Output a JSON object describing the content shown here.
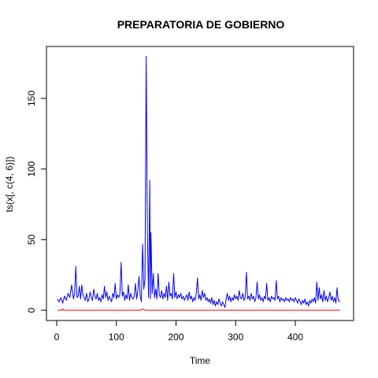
{
  "chart_data": {
    "type": "line",
    "title": "PREPARATORIA DE GOBIERNO",
    "xlabel": "Time",
    "ylabel": "ts(x[, c(4, 6)])",
    "xlim": [
      0,
      480
    ],
    "ylim": [
      0,
      180
    ],
    "x_ticks": [
      0,
      100,
      200,
      300,
      400
    ],
    "y_ticks": [
      0,
      50,
      100,
      150
    ],
    "grid": false,
    "legend": "none",
    "series": [
      {
        "color": "#0000ff",
        "points": [
          [
            1,
            8
          ],
          [
            4,
            6
          ],
          [
            7,
            9
          ],
          [
            10,
            5
          ],
          [
            13,
            10
          ],
          [
            16,
            7
          ],
          [
            19,
            12
          ],
          [
            22,
            9
          ],
          [
            25,
            18
          ],
          [
            28,
            8
          ],
          [
            30,
            12
          ],
          [
            32,
            31
          ],
          [
            34,
            9
          ],
          [
            36,
            10
          ],
          [
            38,
            17
          ],
          [
            40,
            8
          ],
          [
            42,
            18
          ],
          [
            44,
            11
          ],
          [
            46,
            9
          ],
          [
            48,
            7
          ],
          [
            50,
            12
          ],
          [
            52,
            6
          ],
          [
            54,
            8
          ],
          [
            56,
            13
          ],
          [
            58,
            9
          ],
          [
            60,
            7
          ],
          [
            62,
            15
          ],
          [
            64,
            10
          ],
          [
            66,
            8
          ],
          [
            68,
            12
          ],
          [
            70,
            7
          ],
          [
            72,
            9
          ],
          [
            74,
            6
          ],
          [
            76,
            11
          ],
          [
            78,
            8
          ],
          [
            80,
            17
          ],
          [
            82,
            9
          ],
          [
            84,
            13
          ],
          [
            86,
            7
          ],
          [
            88,
            10
          ],
          [
            90,
            8
          ],
          [
            92,
            6
          ],
          [
            94,
            12
          ],
          [
            96,
            9
          ],
          [
            98,
            19
          ],
          [
            100,
            8
          ],
          [
            102,
            11
          ],
          [
            104,
            9
          ],
          [
            106,
            12
          ],
          [
            108,
            34
          ],
          [
            110,
            10
          ],
          [
            112,
            13
          ],
          [
            114,
            7
          ],
          [
            116,
            11
          ],
          [
            118,
            8
          ],
          [
            120,
            18
          ],
          [
            122,
            7
          ],
          [
            124,
            12
          ],
          [
            126,
            9
          ],
          [
            128,
            8
          ],
          [
            130,
            10
          ],
          [
            132,
            19
          ],
          [
            134,
            8
          ],
          [
            136,
            14
          ],
          [
            138,
            24
          ],
          [
            140,
            10
          ],
          [
            142,
            6
          ],
          [
            144,
            47
          ],
          [
            146,
            15
          ],
          [
            148,
            22
          ],
          [
            150,
            180
          ],
          [
            152,
            56
          ],
          [
            154,
            9
          ],
          [
            156,
            92
          ],
          [
            157,
            8
          ],
          [
            158,
            55
          ],
          [
            160,
            12
          ],
          [
            162,
            26
          ],
          [
            164,
            9
          ],
          [
            166,
            15
          ],
          [
            168,
            8
          ],
          [
            170,
            26
          ],
          [
            172,
            11
          ],
          [
            174,
            9
          ],
          [
            176,
            14
          ],
          [
            178,
            8
          ],
          [
            180,
            12
          ],
          [
            182,
            9
          ],
          [
            184,
            17
          ],
          [
            186,
            7
          ],
          [
            188,
            20
          ],
          [
            190,
            10
          ],
          [
            192,
            12
          ],
          [
            194,
            8
          ],
          [
            196,
            26
          ],
          [
            198,
            9
          ],
          [
            200,
            13
          ],
          [
            202,
            8
          ],
          [
            204,
            11
          ],
          [
            206,
            9
          ],
          [
            208,
            12
          ],
          [
            210,
            8
          ],
          [
            212,
            10
          ],
          [
            214,
            7
          ],
          [
            216,
            9
          ],
          [
            218,
            11
          ],
          [
            220,
            7
          ],
          [
            222,
            13
          ],
          [
            224,
            8
          ],
          [
            226,
            10
          ],
          [
            228,
            6
          ],
          [
            230,
            9
          ],
          [
            232,
            7
          ],
          [
            234,
            12
          ],
          [
            236,
            23
          ],
          [
            238,
            8
          ],
          [
            240,
            11
          ],
          [
            242,
            7
          ],
          [
            244,
            14
          ],
          [
            246,
            9
          ],
          [
            248,
            12
          ],
          [
            250,
            7
          ],
          [
            252,
            9
          ],
          [
            254,
            6
          ],
          [
            256,
            8
          ],
          [
            258,
            5
          ],
          [
            260,
            9
          ],
          [
            262,
            4
          ],
          [
            264,
            7
          ],
          [
            266,
            3
          ],
          [
            268,
            6
          ],
          [
            270,
            4
          ],
          [
            272,
            8
          ],
          [
            274,
            5
          ],
          [
            276,
            3
          ],
          [
            278,
            6
          ],
          [
            280,
            4
          ],
          [
            282,
            2
          ],
          [
            284,
            8
          ],
          [
            286,
            12
          ],
          [
            288,
            7
          ],
          [
            290,
            10
          ],
          [
            292,
            6
          ],
          [
            294,
            9
          ],
          [
            296,
            7
          ],
          [
            298,
            11
          ],
          [
            300,
            8
          ],
          [
            302,
            10
          ],
          [
            304,
            7
          ],
          [
            306,
            14
          ],
          [
            308,
            9
          ],
          [
            310,
            8
          ],
          [
            312,
            12
          ],
          [
            314,
            7
          ],
          [
            316,
            9
          ],
          [
            318,
            27
          ],
          [
            320,
            8
          ],
          [
            322,
            10
          ],
          [
            324,
            7
          ],
          [
            326,
            12
          ],
          [
            328,
            8
          ],
          [
            330,
            10
          ],
          [
            332,
            6
          ],
          [
            334,
            9
          ],
          [
            336,
            20
          ],
          [
            338,
            8
          ],
          [
            340,
            11
          ],
          [
            342,
            7
          ],
          [
            344,
            9
          ],
          [
            346,
            6
          ],
          [
            348,
            10
          ],
          [
            350,
            8
          ],
          [
            352,
            19
          ],
          [
            354,
            7
          ],
          [
            356,
            9
          ],
          [
            358,
            6
          ],
          [
            360,
            10
          ],
          [
            362,
            8
          ],
          [
            364,
            9
          ],
          [
            366,
            7
          ],
          [
            368,
            21
          ],
          [
            370,
            8
          ],
          [
            372,
            10
          ],
          [
            374,
            6
          ],
          [
            376,
            9
          ],
          [
            378,
            7
          ],
          [
            380,
            8
          ],
          [
            382,
            6
          ],
          [
            384,
            9
          ],
          [
            386,
            7
          ],
          [
            388,
            8
          ],
          [
            390,
            6
          ],
          [
            392,
            9
          ],
          [
            394,
            7
          ],
          [
            396,
            8
          ],
          [
            398,
            6
          ],
          [
            400,
            9
          ],
          [
            402,
            7
          ],
          [
            404,
            5
          ],
          [
            406,
            8
          ],
          [
            408,
            6
          ],
          [
            410,
            4
          ],
          [
            412,
            7
          ],
          [
            414,
            5
          ],
          [
            416,
            8
          ],
          [
            418,
            4
          ],
          [
            420,
            6
          ],
          [
            422,
            3
          ],
          [
            424,
            7
          ],
          [
            426,
            5
          ],
          [
            428,
            8
          ],
          [
            430,
            6
          ],
          [
            432,
            9
          ],
          [
            434,
            5
          ],
          [
            436,
            20
          ],
          [
            438,
            7
          ],
          [
            440,
            16
          ],
          [
            442,
            8
          ],
          [
            444,
            11
          ],
          [
            446,
            6
          ],
          [
            448,
            14
          ],
          [
            450,
            7
          ],
          [
            452,
            10
          ],
          [
            454,
            6
          ],
          [
            456,
            9
          ],
          [
            458,
            13
          ],
          [
            460,
            7
          ],
          [
            462,
            10
          ],
          [
            464,
            6
          ],
          [
            466,
            9
          ],
          [
            468,
            5
          ],
          [
            470,
            16
          ],
          [
            472,
            7
          ],
          [
            475,
            6
          ]
        ]
      },
      {
        "color": "#ff0000",
        "points": [
          [
            1,
            0
          ],
          [
            8,
            0
          ],
          [
            10,
            1
          ],
          [
            12,
            0
          ],
          [
            60,
            0
          ],
          [
            80,
            0
          ],
          [
            100,
            0
          ],
          [
            120,
            0
          ],
          [
            140,
            0
          ],
          [
            145,
            1
          ],
          [
            148,
            0
          ],
          [
            160,
            0
          ],
          [
            200,
            0
          ],
          [
            240,
            0
          ],
          [
            280,
            0
          ],
          [
            320,
            0
          ],
          [
            360,
            0
          ],
          [
            400,
            0
          ],
          [
            440,
            0
          ],
          [
            475,
            0
          ]
        ]
      }
    ]
  }
}
